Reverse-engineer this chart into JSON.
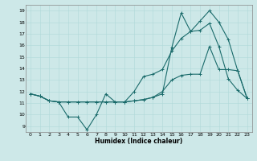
{
  "xlabel": "Humidex (Indice chaleur)",
  "background_color": "#cde8e8",
  "line_color": "#1a6b6b",
  "xlim": [
    -0.5,
    23.5
  ],
  "ylim": [
    8.5,
    19.5
  ],
  "xticks": [
    0,
    1,
    2,
    3,
    4,
    5,
    6,
    7,
    8,
    9,
    10,
    11,
    12,
    13,
    14,
    15,
    16,
    17,
    18,
    19,
    20,
    21,
    22,
    23
  ],
  "yticks": [
    9,
    10,
    11,
    12,
    13,
    14,
    15,
    16,
    17,
    18,
    19
  ],
  "line1_x": [
    0,
    1,
    2,
    3,
    4,
    5,
    6,
    7,
    8,
    9,
    10,
    11,
    12,
    13,
    14,
    15,
    16,
    17,
    18,
    19,
    20,
    21,
    22,
    23
  ],
  "line1_y": [
    11.8,
    11.6,
    11.2,
    11.1,
    9.8,
    9.8,
    8.7,
    10.0,
    11.8,
    11.1,
    11.1,
    12.0,
    13.3,
    13.5,
    13.9,
    15.5,
    16.6,
    17.2,
    17.3,
    17.9,
    15.9,
    13.1,
    12.1,
    11.4
  ],
  "line2_x": [
    0,
    1,
    2,
    3,
    4,
    5,
    6,
    7,
    8,
    9,
    10,
    11,
    12,
    13,
    14,
    15,
    16,
    17,
    18,
    19,
    20,
    21,
    22,
    23
  ],
  "line2_y": [
    11.8,
    11.6,
    11.2,
    11.1,
    11.1,
    11.1,
    11.1,
    11.1,
    11.1,
    11.1,
    11.1,
    11.2,
    11.3,
    11.5,
    12.0,
    13.0,
    13.4,
    13.5,
    13.5,
    15.9,
    13.9,
    13.9,
    13.8,
    11.4
  ],
  "line3_x": [
    0,
    1,
    2,
    3,
    4,
    5,
    6,
    7,
    8,
    9,
    10,
    11,
    12,
    13,
    14,
    15,
    16,
    17,
    18,
    19,
    20,
    21,
    22,
    23
  ],
  "line3_y": [
    11.8,
    11.6,
    11.2,
    11.1,
    11.1,
    11.1,
    11.1,
    11.1,
    11.1,
    11.1,
    11.1,
    11.2,
    11.3,
    11.5,
    11.8,
    15.8,
    18.8,
    17.2,
    18.1,
    19.0,
    18.0,
    16.5,
    13.8,
    11.4
  ]
}
